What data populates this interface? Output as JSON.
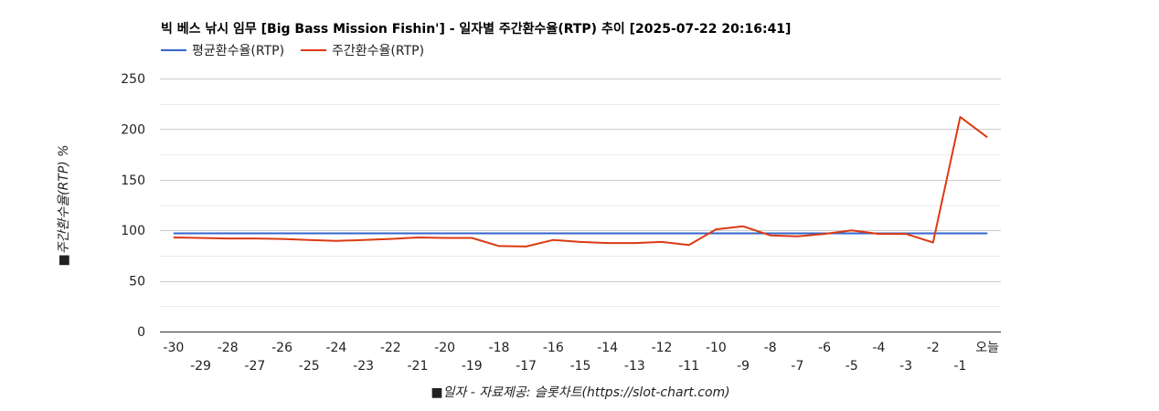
{
  "chart_data": {
    "type": "line",
    "title": "빅 베스 낚시 임무 [Big Bass Mission Fishin'] - 일자별 주간환수율(RTP) 추이 [2025-07-22 20:16:41]",
    "xlabel": "■일자 - 자료제공: 슬롯차트(https://slot-chart.com)",
    "ylabel": "■주간환수율(RTP) %",
    "ylim": [
      0,
      250
    ],
    "yticks": [
      0,
      50,
      100,
      150,
      200,
      250
    ],
    "grid": true,
    "legend": "top-left",
    "categories": [
      "-30",
      "-29",
      "-28",
      "-27",
      "-26",
      "-25",
      "-24",
      "-23",
      "-22",
      "-21",
      "-20",
      "-19",
      "-18",
      "-17",
      "-16",
      "-15",
      "-14",
      "-13",
      "-12",
      "-11",
      "-10",
      "-9",
      "-8",
      "-7",
      "-6",
      "-5",
      "-4",
      "-3",
      "-2",
      "-1",
      "오늘"
    ],
    "series": [
      {
        "name": "평균환수율(RTP)",
        "color": "#3366cc",
        "values": [
          97,
          97,
          97,
          97,
          97,
          97,
          97,
          97,
          97,
          97,
          97,
          97,
          97,
          97,
          97,
          97,
          97,
          97,
          97,
          97,
          97,
          97,
          97,
          97,
          97,
          97,
          97,
          97,
          97,
          97,
          97
        ]
      },
      {
        "name": "주간환수율(RTP)",
        "color": "#dc3912",
        "values": [
          93,
          92.5,
          92,
          92,
          91.5,
          90.5,
          89.5,
          90.5,
          91.5,
          93,
          92.5,
          92.5,
          84.5,
          84,
          90.5,
          88.5,
          87.5,
          87.5,
          88.5,
          85.5,
          101,
          104,
          95,
          94,
          96.5,
          100,
          96.5,
          96.5,
          88,
          212,
          192
        ]
      }
    ]
  }
}
